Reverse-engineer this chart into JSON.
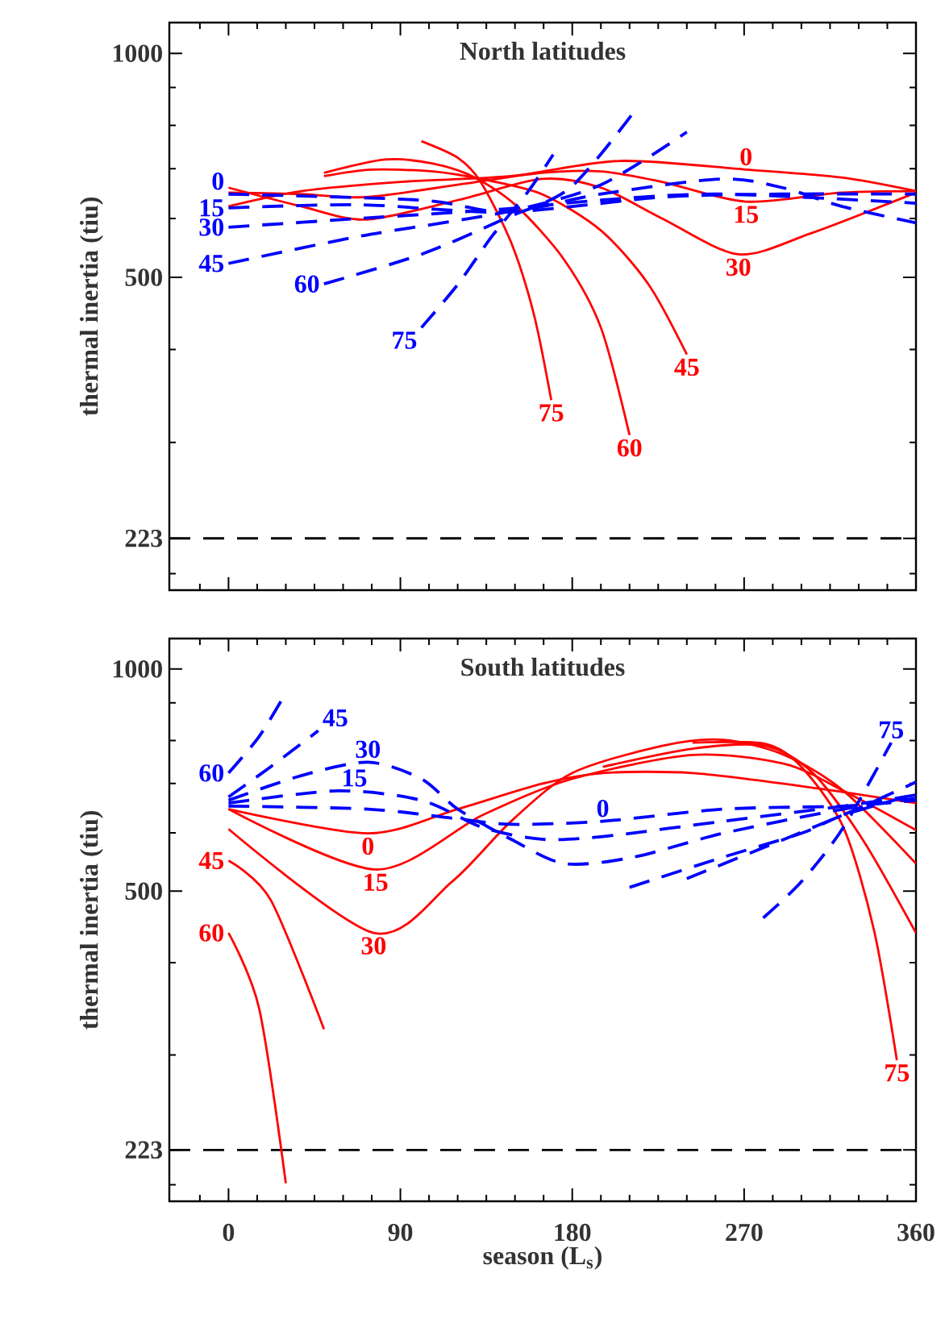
{
  "chart_data": [
    {
      "type": "line",
      "title": "North latitudes",
      "ylabel": "thermal inertia (tiu)",
      "log": "y",
      "tick_labels": "y",
      "xlim": [
        -31,
        360
      ],
      "ylim": [
        190,
        1100
      ],
      "xticks": [
        {
          "value": -15,
          "label": null
        },
        0,
        {
          "value": 15,
          "label": null
        },
        {
          "value": 30,
          "label": null
        },
        {
          "value": 45,
          "label": null
        },
        {
          "value": 60,
          "label": null
        },
        {
          "value": 75,
          "label": null
        },
        90,
        {
          "value": 105,
          "label": null
        },
        {
          "value": 120,
          "label": null
        },
        {
          "value": 135,
          "label": null
        },
        {
          "value": 150,
          "label": null
        },
        {
          "value": 165,
          "label": null
        },
        180,
        {
          "value": 195,
          "label": null
        },
        {
          "value": 210,
          "label": null
        },
        {
          "value": 225,
          "label": null
        },
        {
          "value": 240,
          "label": null
        },
        {
          "value": 255,
          "label": null
        },
        270,
        {
          "value": 285,
          "label": null
        },
        {
          "value": 300,
          "label": null
        },
        {
          "value": 315,
          "label": null
        },
        {
          "value": 330,
          "label": null
        },
        {
          "value": 345,
          "label": null
        },
        360
      ],
      "yticks": [
        {
          "value": 200,
          "label": null
        },
        223,
        {
          "value": 300,
          "label": null
        },
        {
          "value": 400,
          "label": null
        },
        500,
        {
          "value": 600,
          "label": null
        },
        {
          "value": 700,
          "label": null
        },
        {
          "value": 800,
          "label": null
        },
        {
          "value": 900,
          "label": null
        },
        1000
      ],
      "ref_lines": [
        {
          "axis": "y",
          "value": 223,
          "color": "#000000",
          "line_style": "dashed"
        }
      ],
      "series": [
        {
          "name": "0",
          "color": "#ff0000",
          "line_style": "solid",
          "x": [
            0,
            38,
            90,
            148,
            205,
            271,
            321,
            360
          ],
          "values": [
            623,
            653,
            672,
            684,
            717,
            698,
            681,
            653
          ]
        },
        {
          "name": "15",
          "color": "#ff0000",
          "line_style": "solid",
          "x": [
            0,
            38,
            72,
            120,
            164,
            195,
            227,
            271,
            321,
            360
          ],
          "values": [
            650,
            647,
            641,
            666,
            691,
            694,
            672,
            632,
            650,
            653
          ]
        },
        {
          "name": "30",
          "color": "#ff0000",
          "line_style": "solid",
          "x": [
            0,
            38,
            72,
            120,
            164,
            195,
            227,
            267,
            305,
            360
          ],
          "values": [
            660,
            623,
            598,
            635,
            678,
            660,
            600,
            537,
            573,
            650
          ]
        },
        {
          "name": "45",
          "color": "#ff0000",
          "line_style": "solid",
          "x": [
            50,
            75,
            107,
            132,
            164,
            195,
            220,
            240
          ],
          "values": [
            684,
            698,
            694,
            678,
            647,
            578,
            489,
            394
          ]
        },
        {
          "name": "60",
          "color": "#ff0000",
          "line_style": "solid",
          "x": [
            50,
            82,
            107,
            129,
            151,
            176,
            195,
            210
          ],
          "values": [
            691,
            720,
            711,
            681,
            623,
            527,
            428,
            307
          ]
        },
        {
          "name": "75",
          "color": "#ff0000",
          "line_style": "solid",
          "x": [
            101,
            120,
            132,
            148,
            160,
            169
          ],
          "values": [
            762,
            724,
            672,
            557,
            445,
            342
          ]
        },
        {
          "name": "0",
          "color": "#0000ff",
          "line_style": "dashed",
          "x": [
            0,
            101,
            145,
            195,
            258,
            290,
            321,
            360
          ],
          "values": [
            647,
            635,
            612,
            647,
            678,
            660,
            623,
            592
          ]
        },
        {
          "name": "15",
          "color": "#0000ff",
          "line_style": "dashed",
          "x": [
            0,
            69,
            145,
            227,
            290,
            360
          ],
          "values": [
            620,
            626,
            612,
            641,
            647,
            647
          ]
        },
        {
          "name": "30",
          "color": "#0000ff",
          "line_style": "dashed",
          "x": [
            0,
            69,
            145,
            195,
            258,
            360
          ],
          "values": [
            584,
            600,
            618,
            635,
            647,
            629
          ]
        },
        {
          "name": "45",
          "color": "#0000ff",
          "line_style": "dashed",
          "x": [
            0,
            69,
            145,
            195,
            240
          ],
          "values": [
            522,
            568,
            612,
            666,
            784
          ]
        },
        {
          "name": "60",
          "color": "#0000ff",
          "line_style": "dashed",
          "x": [
            50,
            101,
            145,
            179,
            211
          ],
          "values": [
            490,
            537,
            600,
            660,
            826
          ]
        },
        {
          "name": "75",
          "color": "#0000ff",
          "line_style": "dashed",
          "x": [
            101,
            120,
            138,
            157,
            170
          ],
          "values": [
            428,
            489,
            568,
            653,
            731
          ]
        }
      ]
    },
    {
      "type": "line",
      "title": "South latitudes",
      "xlabel": "season (L$_{s}$)",
      "ylabel": "thermal inertia (tiu)",
      "log": "y",
      "xlim": [
        -31,
        360
      ],
      "ylim": [
        190,
        1100
      ],
      "xticks": [
        {
          "value": -15,
          "label": null
        },
        0,
        {
          "value": 15,
          "label": null
        },
        {
          "value": 30,
          "label": null
        },
        {
          "value": 45,
          "label": null
        },
        {
          "value": 60,
          "label": null
        },
        {
          "value": 75,
          "label": null
        },
        90,
        {
          "value": 105,
          "label": null
        },
        {
          "value": 120,
          "label": null
        },
        {
          "value": 135,
          "label": null
        },
        {
          "value": 150,
          "label": null
        },
        {
          "value": 165,
          "label": null
        },
        180,
        {
          "value": 195,
          "label": null
        },
        {
          "value": 210,
          "label": null
        },
        {
          "value": 225,
          "label": null
        },
        {
          "value": 240,
          "label": null
        },
        {
          "value": 255,
          "label": null
        },
        270,
        {
          "value": 285,
          "label": null
        },
        {
          "value": 300,
          "label": null
        },
        {
          "value": 315,
          "label": null
        },
        {
          "value": 330,
          "label": null
        },
        {
          "value": 345,
          "label": null
        },
        360
      ],
      "yticks": [
        {
          "value": 200,
          "label": null
        },
        223,
        {
          "value": 300,
          "label": null
        },
        {
          "value": 400,
          "label": null
        },
        500,
        {
          "value": 600,
          "label": null
        },
        {
          "value": 700,
          "label": null
        },
        {
          "value": 800,
          "label": null
        },
        {
          "value": 900,
          "label": null
        },
        1000
      ],
      "ref_lines": [
        {
          "axis": "y",
          "value": 223,
          "color": "#000000",
          "line_style": "dashed"
        }
      ],
      "series": [
        {
          "name": "0",
          "color": "#ff0000",
          "line_style": "solid",
          "x": [
            0,
            73,
            120,
            164,
            196,
            243,
            300,
            360
          ],
          "values": [
            646,
            599,
            646,
            699,
            723,
            723,
            694,
            658
          ]
        },
        {
          "name": "15",
          "color": "#ff0000",
          "line_style": "solid",
          "x": [
            0,
            77,
            133,
            180,
            243,
            291,
            322,
            360
          ],
          "values": [
            646,
            535,
            634,
            710,
            765,
            744,
            684,
            605
          ]
        },
        {
          "name": "30",
          "color": "#ff0000",
          "line_style": "solid",
          "x": [
            0,
            76,
            117,
            148,
            180,
            227,
            259,
            291,
            322,
            360
          ],
          "values": [
            607,
            439,
            515,
            622,
            723,
            787,
            802,
            765,
            684,
            545
          ]
        },
        {
          "name": "45",
          "color": "#ff0000",
          "line_style": "solid",
          "x": [
            0,
            22,
            50,
            120,
            196,
            243,
            281,
            306,
            332,
            360
          ],
          "values": [
            550,
            487,
            325,
            null,
            737,
            780,
            787,
            723,
            588,
            439
          ]
        },
        {
          "name": "60",
          "color": "#ff0000",
          "line_style": "solid",
          "x": [
            0,
            16,
            30
          ],
          "values": [
            439,
            347,
            201
          ]
        },
        {
          "name": "75",
          "color": "#ff0000",
          "line_style": "solid",
          "x": [
            243,
            281,
            300,
            322,
            338,
            350
          ],
          "values": [
            795,
            792,
            737,
            610,
            443,
            295
          ]
        },
        {
          "name": "0",
          "color": "#0000ff",
          "line_style": "dashed",
          "x": [
            0,
            73,
            117,
            148,
            196,
            259,
            322,
            360
          ],
          "values": [
            652,
            646,
            628,
            616,
            622,
            646,
            652,
            664
          ]
        },
        {
          "name": "15",
          "color": "#0000ff",
          "line_style": "dashed",
          "x": [
            0,
            57,
            101,
            133,
            164,
            196,
            259,
            322,
            360
          ],
          "values": [
            658,
            684,
            664,
            610,
            588,
            593,
            622,
            652,
            675
          ]
        },
        {
          "name": "30",
          "color": "#0000ff",
          "line_style": "dashed",
          "x": [
            0,
            38,
            73,
            101,
            120,
            148,
            176,
            212,
            259,
            322,
            360
          ],
          "values": [
            664,
            717,
            748,
            710,
            646,
            588,
            545,
            556,
            599,
            646,
            668
          ]
        },
        {
          "name": "45",
          "color": "#0000ff",
          "line_style": "dashed",
          "x": [
            0,
            22,
            47,
            120,
            210,
            259,
            300,
            322,
            360
          ],
          "values": [
            671,
            737,
            825,
            null,
            506,
            556,
            599,
            634,
            677
          ]
        },
        {
          "name": "60",
          "color": "#0000ff",
          "line_style": "dashed",
          "x": [
            0,
            16,
            30,
            120,
            240,
            291,
            329,
            360
          ],
          "values": [
            723,
            810,
            928,
            null,
            520,
            588,
            646,
            703
          ]
        },
        {
          "name": "75",
          "color": "#0000ff",
          "line_style": "dashed",
          "x": [
            280,
            300,
            322,
            347
          ],
          "values": [
            460,
            515,
            610,
            795
          ]
        }
      ]
    }
  ]
}
